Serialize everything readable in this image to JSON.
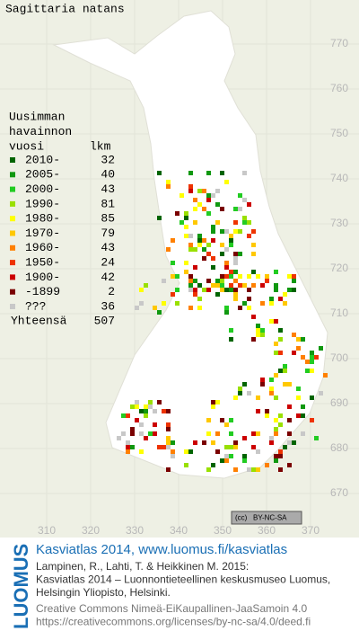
{
  "map": {
    "title": "Sagittaria natans",
    "legend": {
      "header": [
        "Uusimman",
        "havainnon",
        "vuosi"
      ],
      "count_header": "lkm",
      "rows": [
        {
          "label": "2010-",
          "count": "32",
          "color": "#006400"
        },
        {
          "label": "2005-",
          "count": "40",
          "color": "#109810"
        },
        {
          "label": "2000-",
          "count": "43",
          "color": "#22cc22"
        },
        {
          "label": "1990-",
          "count": "81",
          "color": "#99e000"
        },
        {
          "label": "1980-",
          "count": "85",
          "color": "#ffff00"
        },
        {
          "label": "1970-",
          "count": "79",
          "color": "#ffc800"
        },
        {
          "label": "1960-",
          "count": "43",
          "color": "#ff8000"
        },
        {
          "label": "1950-",
          "count": "24",
          "color": "#ee3300"
        },
        {
          "label": "1900-",
          "count": "42",
          "color": "#cc0000"
        },
        {
          "label": "-1899",
          "count": "2",
          "color": "#7a0000"
        },
        {
          "label": "???",
          "count": "36",
          "color": "#c8c8c8"
        }
      ],
      "total_label": "Yhteensä",
      "total": "507"
    },
    "xticks": [
      310,
      320,
      330,
      340,
      350,
      360,
      370
    ],
    "yticks": [
      670,
      680,
      690,
      700,
      710,
      720,
      730,
      740,
      750,
      760,
      770
    ],
    "license_badge": "BY-NC-SA"
  },
  "footer": {
    "logo": "LUOMUS",
    "heading": "Kasviatlas 2014, www.luomus.fi/kasviatlas",
    "citation": [
      "Lampinen, R., Lahti, T. & Heikkinen M. 2015:",
      "Kasviatlas 2014 – Luonnontieteellinen keskusmuseo Luomus,",
      "Helsingin Yliopisto, Helsinki."
    ],
    "license": [
      "Creative Commons Nimeä-EiKaupallinen-JaaSamoin 4.0",
      "https://creativecommons.org/licenses/by-nc-sa/4.0/deed.fi"
    ]
  }
}
